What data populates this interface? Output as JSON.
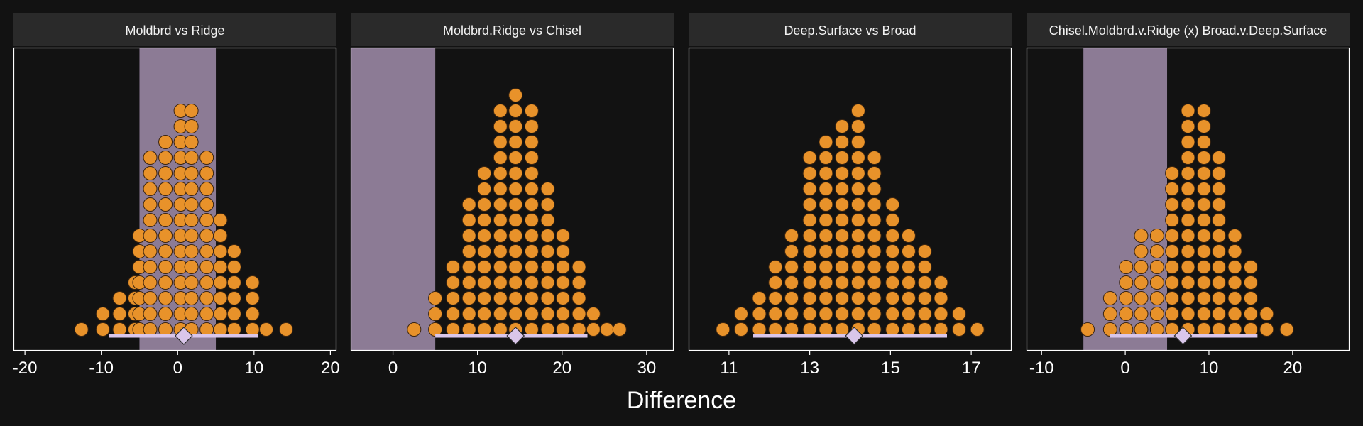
{
  "chart_data": {
    "type": "dotplot",
    "xlabel": "Difference",
    "colors": {
      "background": "#121212",
      "strip": "#2a2a2a",
      "strip_text": "#f2f2f2",
      "panel_border": "#ffffff",
      "rope_band": "#8c7b95",
      "dot_fill": "#e8922a",
      "dot_stroke": "#3a2410",
      "interval": "#d9c6ea",
      "point": "#d9c6ea",
      "point_stroke": "#2a2a2a",
      "axis_text": "#ffffff"
    },
    "rope": [
      -5,
      5
    ],
    "panels": [
      {
        "title": "Moldbrd vs Ridge",
        "xlim": [
          -21.5,
          20.8
        ],
        "ticks": [
          -20,
          -10,
          0,
          10,
          20
        ],
        "tick_labels": [
          "-20",
          "-10",
          "0",
          "10",
          "20"
        ],
        "binwidth": 1.95,
        "columns": [
          {
            "x": -12.6,
            "n": 1
          },
          {
            "x": -9.8,
            "n": 2
          },
          {
            "x": -7.6,
            "n": 3
          },
          {
            "x": -5.6,
            "n": 4
          },
          {
            "x": -5.0,
            "n": 7
          },
          {
            "x": -3.6,
            "n": 12
          },
          {
            "x": -1.6,
            "n": 13
          },
          {
            "x": 0.4,
            "n": 15
          },
          {
            "x": 1.8,
            "n": 15
          },
          {
            "x": 3.8,
            "n": 12
          },
          {
            "x": 5.6,
            "n": 8
          },
          {
            "x": 7.4,
            "n": 6
          },
          {
            "x": 9.8,
            "n": 4
          },
          {
            "x": 11.6,
            "n": 1
          },
          {
            "x": 14.2,
            "n": 1
          }
        ],
        "interval": [
          -9.0,
          10.5
        ],
        "point": 0.8
      },
      {
        "title": "Moldbrd.Ridge vs Chisel",
        "xlim": [
          -5,
          33.2
        ],
        "ticks": [
          0,
          10,
          20,
          30
        ],
        "tick_labels": [
          "0",
          "10",
          "20",
          "30"
        ],
        "binwidth": 1.85,
        "columns": [
          {
            "x": 2.5,
            "n": 1
          },
          {
            "x": 5.0,
            "n": 3
          },
          {
            "x": 7.1,
            "n": 5
          },
          {
            "x": 9.0,
            "n": 9
          },
          {
            "x": 10.8,
            "n": 11
          },
          {
            "x": 12.7,
            "n": 15
          },
          {
            "x": 14.5,
            "n": 16
          },
          {
            "x": 16.4,
            "n": 15
          },
          {
            "x": 18.3,
            "n": 10
          },
          {
            "x": 20.1,
            "n": 7
          },
          {
            "x": 22.0,
            "n": 5
          },
          {
            "x": 23.7,
            "n": 2
          },
          {
            "x": 25.3,
            "n": 1
          },
          {
            "x": 26.8,
            "n": 1
          }
        ],
        "interval": [
          5.0,
          23.0
        ],
        "point": 14.5
      },
      {
        "title": "Deep.Surface vs Broad",
        "xlim": [
          10.0,
          18.0
        ],
        "ticks": [
          11,
          13,
          15,
          17
        ],
        "tick_labels": [
          "11",
          "13",
          "15",
          "17"
        ],
        "binwidth": 0.4,
        "columns": [
          {
            "x": 10.85,
            "n": 1
          },
          {
            "x": 11.3,
            "n": 2
          },
          {
            "x": 11.75,
            "n": 3
          },
          {
            "x": 12.15,
            "n": 5
          },
          {
            "x": 12.55,
            "n": 7
          },
          {
            "x": 13.0,
            "n": 12
          },
          {
            "x": 13.4,
            "n": 13
          },
          {
            "x": 13.8,
            "n": 14
          },
          {
            "x": 14.2,
            "n": 15
          },
          {
            "x": 14.6,
            "n": 12
          },
          {
            "x": 15.05,
            "n": 9
          },
          {
            "x": 15.45,
            "n": 7
          },
          {
            "x": 15.85,
            "n": 6
          },
          {
            "x": 16.25,
            "n": 4
          },
          {
            "x": 16.7,
            "n": 2
          },
          {
            "x": 17.15,
            "n": 1
          }
        ],
        "interval": [
          11.6,
          16.4
        ],
        "point": 14.1
      },
      {
        "title": "Chisel.Moldbrd.v.Ridge (x) Broad.v.Deep.Surface",
        "xlim": [
          -11.8,
          26.8
        ],
        "ticks": [
          -10,
          0,
          10,
          20
        ],
        "tick_labels": [
          "-10",
          "0",
          "10",
          "20"
        ],
        "binwidth": 1.85,
        "columns": [
          {
            "x": -4.5,
            "n": 1
          },
          {
            "x": -1.8,
            "n": 3
          },
          {
            "x": 0.1,
            "n": 5
          },
          {
            "x": 1.9,
            "n": 7
          },
          {
            "x": 3.8,
            "n": 7
          },
          {
            "x": 5.6,
            "n": 11
          },
          {
            "x": 7.5,
            "n": 15
          },
          {
            "x": 9.4,
            "n": 15
          },
          {
            "x": 11.2,
            "n": 12
          },
          {
            "x": 13.1,
            "n": 7
          },
          {
            "x": 15.0,
            "n": 5
          },
          {
            "x": 16.9,
            "n": 2
          },
          {
            "x": 19.3,
            "n": 1
          }
        ],
        "interval": [
          -1.8,
          15.8
        ],
        "point": 6.9
      }
    ]
  }
}
